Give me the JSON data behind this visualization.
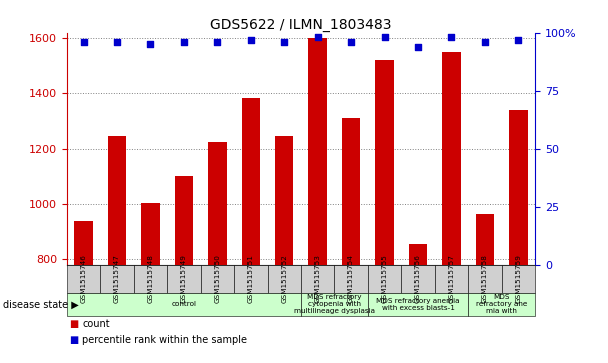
{
  "title": "GDS5622 / ILMN_1803483",
  "samples": [
    "GSM1515746",
    "GSM1515747",
    "GSM1515748",
    "GSM1515749",
    "GSM1515750",
    "GSM1515751",
    "GSM1515752",
    "GSM1515753",
    "GSM1515754",
    "GSM1515755",
    "GSM1515756",
    "GSM1515757",
    "GSM1515758",
    "GSM1515759"
  ],
  "counts": [
    940,
    1245,
    1003,
    1100,
    1225,
    1385,
    1248,
    1600,
    1310,
    1520,
    855,
    1550,
    965,
    1340
  ],
  "percentiles": [
    96,
    96,
    95,
    96,
    96,
    97,
    96,
    98,
    96,
    98,
    94,
    98,
    96,
    97
  ],
  "ylim_left": [
    780,
    1620
  ],
  "ylim_right": [
    0,
    100
  ],
  "yticks_left": [
    800,
    1000,
    1200,
    1400,
    1600
  ],
  "yticks_right": [
    0,
    25,
    50,
    75,
    100
  ],
  "bar_color": "#cc0000",
  "dot_color": "#0000cc",
  "disease_groups": [
    {
      "label": "control",
      "start": 0,
      "end": 7,
      "color": "#ccffcc"
    },
    {
      "label": "MDS refractory\ncytopenia with\nmultilineage dysplasia",
      "start": 7,
      "end": 9,
      "color": "#ccffcc"
    },
    {
      "label": "MDS refractory anemia\nwith excess blasts-1",
      "start": 9,
      "end": 12,
      "color": "#ccffcc"
    },
    {
      "label": "MDS\nrefractory ane\nmia with",
      "start": 12,
      "end": 14,
      "color": "#ccffcc"
    }
  ],
  "disease_state_label": "disease state",
  "legend_count_label": "count",
  "legend_pct_label": "percentile rank within the sample",
  "bar_width": 0.55,
  "tick_bg_color": "#d0d0d0",
  "bg_color": "#ffffff"
}
